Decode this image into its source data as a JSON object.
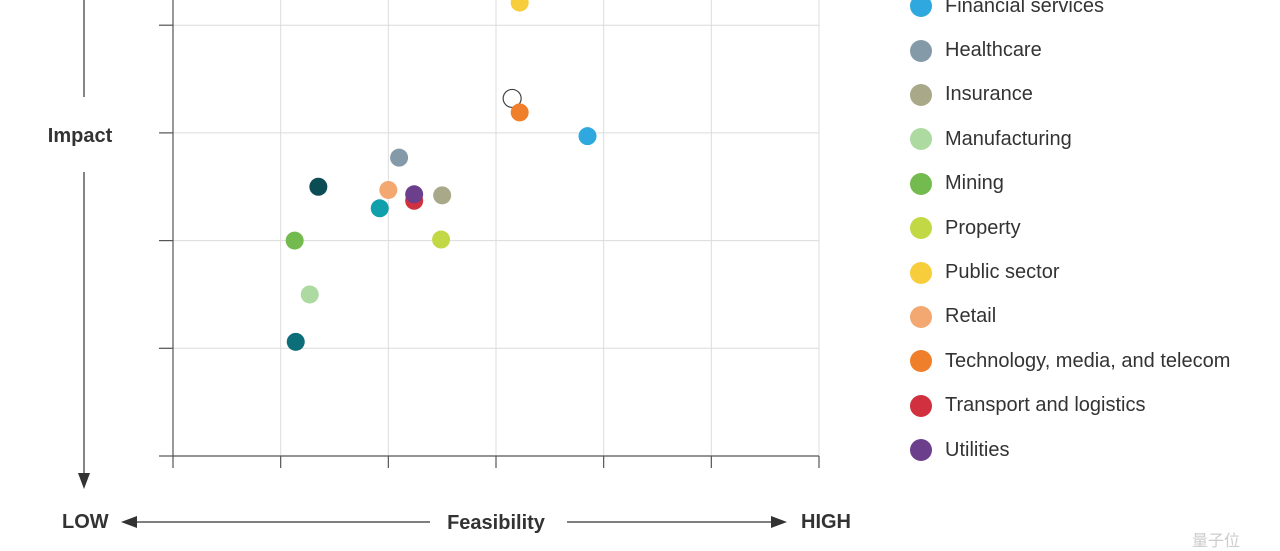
{
  "chart_data": {
    "type": "scatter",
    "ylabel": "Impact",
    "xlabel": "Feasibility",
    "x_low_label": "LOW",
    "x_high_label": "HIGH",
    "xlim": [
      0,
      6
    ],
    "ylim": [
      0,
      4.3
    ],
    "grid": true,
    "legend_position": "right",
    "series": [
      {
        "name": "Financial services",
        "color": "#2ea8df",
        "x": 3.85,
        "y": 2.97
      },
      {
        "name": "Healthcare",
        "color": "#849aa8",
        "x": 2.1,
        "y": 2.77
      },
      {
        "name": "Insurance",
        "color": "#a9a888",
        "x": 2.5,
        "y": 2.42
      },
      {
        "name": "Manufacturing",
        "color": "#addaa0",
        "x": 1.27,
        "y": 1.5
      },
      {
        "name": "Mining",
        "color": "#74bb4f",
        "x": 1.13,
        "y": 2.0
      },
      {
        "name": "Property",
        "color": "#c2d845",
        "x": 2.49,
        "y": 2.01
      },
      {
        "name": "Public sector",
        "color": "#f8cd3c",
        "x": 3.22,
        "y": 4.21
      },
      {
        "name": "Retail",
        "color": "#f2a870",
        "x": 2.0,
        "y": 2.47
      },
      {
        "name": "Technology, media, and telecom",
        "color": "#ef7f2b",
        "x": 3.22,
        "y": 3.19
      },
      {
        "name": "Transport and logistics",
        "color": "#d1303e",
        "x": 2.24,
        "y": 2.37
      },
      {
        "name": "Utilities",
        "color": "#6c3f8c",
        "x": 2.24,
        "y": 2.43
      }
    ],
    "unlabeled_points": [
      {
        "color": "#0c4c55",
        "x": 1.35,
        "y": 2.5
      },
      {
        "color": "#10a0ac",
        "x": 1.92,
        "y": 2.3
      },
      {
        "color": "#0b6e78",
        "x": 1.14,
        "y": 1.06
      },
      {
        "color": "hollow",
        "x": 3.15,
        "y": 3.32
      }
    ]
  },
  "watermark": "量子位"
}
